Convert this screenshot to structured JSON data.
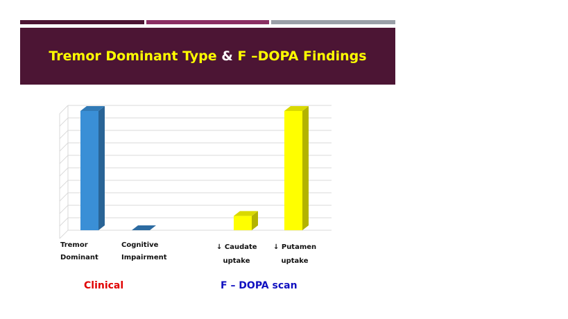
{
  "slide": {
    "title_part1": "Tremor Dominant Type",
    "title_part2": "&",
    "title_part3": "F –DOPA Findings"
  },
  "colors": {
    "title_bg": "#4c1534",
    "title_text": "#ffff00",
    "clinical": "#e00000",
    "fdopa": "#1010c0",
    "series_blue": "#3a8fd6",
    "series_yellow": "#ffff00"
  },
  "chart_data": {
    "type": "bar",
    "style": "3d",
    "categories": [
      {
        "line1": "Tremor",
        "line2": "Dominant",
        "group": "clinical",
        "value": 100,
        "color": "#3a8fd6"
      },
      {
        "line1": "Cognitive",
        "line2": "Impairment",
        "group": "clinical",
        "value": 0,
        "color": "#3a8fd6"
      },
      {
        "line1": "↓ Caudate",
        "line2": "uptake",
        "group": "fdopa",
        "value": 12,
        "color": "#ffff00"
      },
      {
        "line1": "↓ Putamen",
        "line2": "uptake",
        "group": "fdopa",
        "value": 100,
        "color": "#ffff00"
      }
    ],
    "groups": {
      "clinical": "Clinical",
      "fdopa": "F – DOPA scan"
    },
    "ylim": [
      0,
      100
    ],
    "grid": true,
    "legend": "none"
  }
}
